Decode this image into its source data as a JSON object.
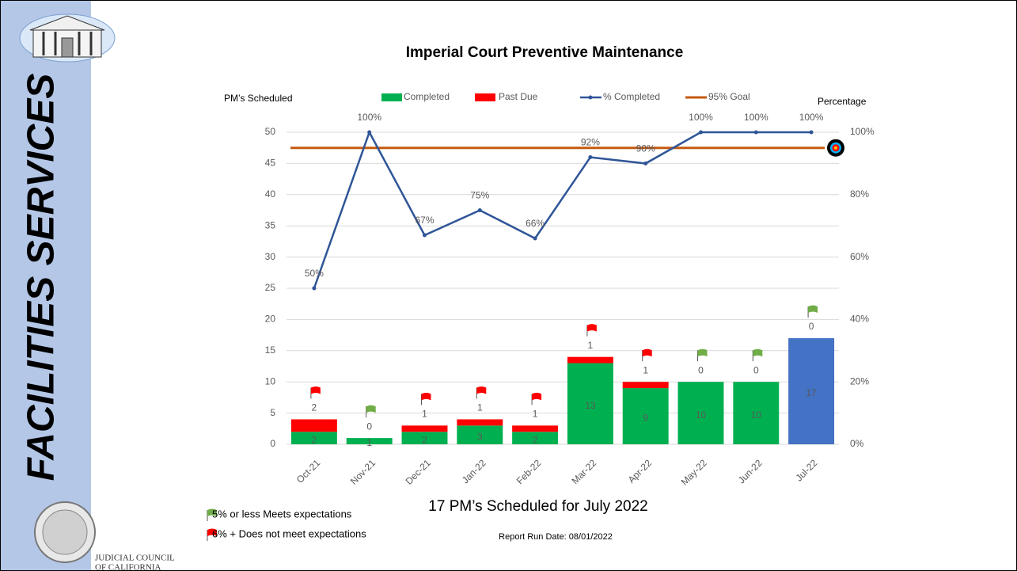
{
  "sidebar": {
    "title": "FACILITIES SERVICES",
    "org": [
      "JUDICIAL COUNCIL",
      "OF CALIFORNIA"
    ]
  },
  "chart_data": {
    "type": "bar",
    "title": "Imperial Court Preventive Maintenance",
    "ylabel": "PM’s Scheduled",
    "y2label": "Percentage",
    "subtitle": "17 PM’s Scheduled for July 2022",
    "footnote": "Report Run Date: 08/01/2022",
    "categories": [
      "Oct-21",
      "Nov-21",
      "Dec-21",
      "Jan-22",
      "Feb-22",
      "Mar-22",
      "Apr-22",
      "May-22",
      "Jun-22",
      "Jul-22"
    ],
    "series": [
      {
        "name": "Completed",
        "color": "#00b050",
        "point_colors": [
          "#00b050",
          "#00b050",
          "#00b050",
          "#00b050",
          "#00b050",
          "#00b050",
          "#00b050",
          "#00b050",
          "#00b050",
          "#4472c4"
        ],
        "values": [
          2,
          1,
          2,
          3,
          2,
          13,
          9,
          10,
          10,
          17
        ]
      },
      {
        "name": "Past Due",
        "color": "#ff0000",
        "values": [
          2,
          0,
          1,
          1,
          1,
          1,
          1,
          0,
          0,
          0
        ]
      },
      {
        "name": "% Completed",
        "color": "#2f5597",
        "axis": "y2",
        "values": [
          50,
          100,
          67,
          75,
          66,
          92,
          90,
          100,
          100,
          100
        ],
        "value_labels": [
          "50%",
          "100%",
          "67%",
          "75%",
          "66%",
          "92%",
          "90%",
          "100%",
          "100%",
          "100%"
        ]
      }
    ],
    "goal": {
      "name": "95% Goal",
      "value": 95,
      "color": "#c55a11"
    },
    "flags": [
      "red",
      "green",
      "red",
      "red",
      "red",
      "red",
      "red",
      "green",
      "green",
      "green"
    ],
    "flag_legend": [
      {
        "color": "green",
        "label": "5% or less Meets expectations"
      },
      {
        "color": "red",
        "label": "6% +  Does not meet expectations"
      }
    ],
    "ylim": [
      0,
      50
    ],
    "yticks": [
      0,
      5,
      10,
      15,
      20,
      25,
      30,
      35,
      40,
      45,
      50
    ],
    "y2lim": [
      0,
      100
    ],
    "y2ticks": [
      {
        "value": 0,
        "label": "0%"
      },
      {
        "value": 20,
        "label": "20%"
      },
      {
        "value": 40,
        "label": "40%"
      },
      {
        "value": 60,
        "label": "60%"
      },
      {
        "value": 80,
        "label": "80%"
      },
      {
        "value": 100,
        "label": "100%"
      }
    ],
    "grid": true
  }
}
